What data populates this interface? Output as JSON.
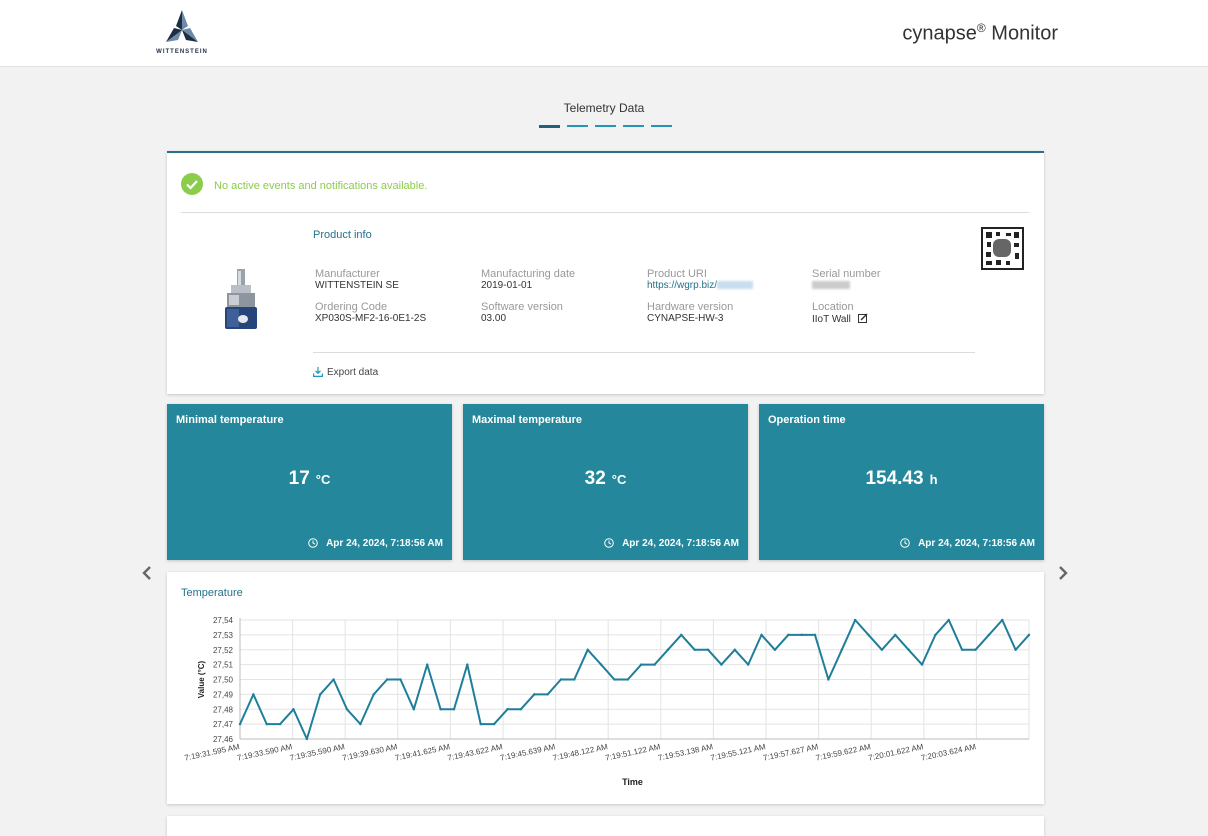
{
  "header": {
    "brand": "WITTENSTEIN",
    "app_name": "cynapse",
    "app_reg": "®",
    "app_suffix": " Monitor"
  },
  "page": {
    "heading": "Telemetry Data",
    "step_count": 5,
    "active_step": 1
  },
  "notification": {
    "text": "No active events and notifications available.",
    "color": "#8ccc4b"
  },
  "product": {
    "title": "Product info",
    "manufacturer_label": "Manufacturer",
    "manufacturer": "WITTENSTEIN SE",
    "manufacturing_date_label": "Manufacturing date",
    "manufacturing_date": "2019-01-01",
    "product_uri_label": "Product URI",
    "product_uri": "https://wgrp.biz/",
    "serial_number_label": "Serial number",
    "ordering_code_label": "Ordering Code",
    "ordering_code": "XP030S-MF2-16-0E1-2S",
    "software_version_label": "Software version",
    "software_version": "03.00",
    "hardware_version_label": "Hardware version",
    "hardware_version": "CYNAPSE-HW-3",
    "location_label": "Location",
    "location": "IIoT Wall",
    "export_label": "Export data"
  },
  "kpis": [
    {
      "title": "Minimal temperature",
      "value": "17",
      "unit": "°C",
      "time": "Apr 24, 2024, 7:18:56 AM"
    },
    {
      "title": "Maximal temperature",
      "value": "32",
      "unit": "°C",
      "time": "Apr 24, 2024, 7:18:56 AM"
    },
    {
      "title": "Operation time",
      "value": "154.43",
      "unit": "h",
      "time": "Apr 24, 2024, 7:18:56 AM"
    }
  ],
  "colors": {
    "accent": "#24728b",
    "kpi_bg": "#24879b",
    "line": "#1f7f99"
  },
  "chart_data": {
    "type": "line",
    "title": "Temperature",
    "xlabel": "Time",
    "ylabel": "Value (°C)",
    "ylim": [
      27.46,
      27.54
    ],
    "yticks": [
      "27,46",
      "27,47",
      "27,48",
      "27,49",
      "27,50",
      "27,51",
      "27,52",
      "27,53",
      "27,54"
    ],
    "xtick_labels": [
      "7:19:31.595 AM",
      "7:19:33.590 AM",
      "7:19:35.590 AM",
      "7:19:39.630 AM",
      "7:19:41.625 AM",
      "7:19:43.622 AM",
      "7:19:45.639 AM",
      "7:19:48.122 AM",
      "7:19:51.122 AM",
      "7:19:53.138 AM",
      "7:19:55.121 AM",
      "7:19:57.627 AM",
      "7:19:59.622 AM",
      "7:20:01.622 AM",
      "7:20:03.624 AM"
    ],
    "grid": true,
    "series": [
      {
        "values": [
          27.47,
          27.49,
          27.47,
          27.47,
          27.48,
          27.46,
          27.49,
          27.5,
          27.48,
          27.47,
          27.49,
          27.5,
          27.5,
          27.48,
          27.51,
          27.48,
          27.48,
          27.51,
          27.47,
          27.47,
          27.48,
          27.48,
          27.49,
          27.49,
          27.5,
          27.5,
          27.52,
          27.51,
          27.5,
          27.5,
          27.51,
          27.51,
          27.52,
          27.53,
          27.52,
          27.52,
          27.51,
          27.52,
          27.51,
          27.53,
          27.52,
          27.53,
          27.53,
          27.53,
          27.5,
          27.52,
          27.54,
          27.53,
          27.52,
          27.53,
          27.52,
          27.51,
          27.53,
          27.54,
          27.52,
          27.52,
          27.53,
          27.54,
          27.52,
          27.53
        ]
      }
    ]
  }
}
